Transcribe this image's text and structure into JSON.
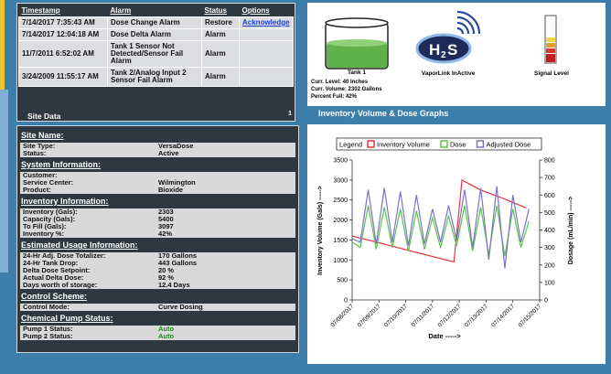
{
  "alarms": {
    "headers": [
      "Timestamp",
      "Alarm",
      "Status",
      "Options"
    ],
    "rows": [
      {
        "timestamp": "7/14/2017 7:35:43 AM",
        "alarm": "Dose Change Alarm",
        "status": "Restore",
        "option": "Acknowledge"
      },
      {
        "timestamp": "7/14/2017 12:04:18 AM",
        "alarm": "Dose Delta Alarm",
        "status": "Alarm"
      },
      {
        "timestamp": "11/7/2011 6:52:02 AM",
        "alarm": "Tank 1 Sensor Not Detected/Sensor Fail Alarm",
        "status": "Alarm"
      },
      {
        "timestamp": "3/24/2009 11:55:17 AM",
        "alarm": "Tank 2/Analog Input 2 Sensor Fail Alarm",
        "status": "Alarm"
      }
    ],
    "page": "1"
  },
  "status_panel": {
    "tank_name": "Tank 1",
    "vapor_icon": [
      "H",
      "2",
      "S"
    ],
    "vapor_label": "VaporLink InActive",
    "signal_label": "Signal Level",
    "tank_lines": [
      "Curr. Level: 40 Inches",
      "Curr. Volume: 2302 Gallons",
      "Percent Full: 42%"
    ]
  },
  "site_data_title": "Site Data",
  "graphs_title": "Inventory Volume & Dose Graphs",
  "sections": [
    {
      "title": "Site Name:",
      "rows": [
        [
          "Site Type:",
          "VersaDose"
        ],
        [
          "Status:",
          "Active"
        ]
      ]
    },
    {
      "title": "System Information:",
      "rows": [
        [
          "Customer:"
        ],
        [
          "Service Center:",
          "Wilmington"
        ],
        [
          "Product:",
          "Bioxide"
        ]
      ]
    },
    {
      "title": "Inventory Information:",
      "rows": [
        [
          "Inventory (Gals):",
          "2303"
        ],
        [
          "Capacity (Gals):",
          "5400"
        ],
        [
          "To Fill (Gals):",
          "3097"
        ],
        [
          "Inventory %:",
          "42%"
        ]
      ]
    },
    {
      "title": "Estimated Usage Information:",
      "rows": [
        [
          "24-Hr Adj. Dose Totalizer:",
          "170 Gallons"
        ],
        [
          "24-Hr Tank Drop:",
          "443 Gallons"
        ],
        [
          "Delta Dose Setpoint:",
          "20 %"
        ],
        [
          "Actual Delta Dose:",
          "92 %"
        ],
        [
          "Days worth of storage:",
          "12.4 Days"
        ]
      ]
    },
    {
      "title": "Control Scheme:",
      "rows": [
        [
          "Control Mode:",
          "Curve Dosing"
        ]
      ]
    },
    {
      "title": "Chemical Pump Status:",
      "value_color": "#1a8a1a",
      "rows": [
        [
          "Pump 1 Status:",
          "Auto"
        ],
        [
          "Pump 2 Status:",
          "Auto"
        ]
      ]
    }
  ],
  "chart_data": {
    "type": "line",
    "legend_title": "Legend",
    "xlabel": "Date ----->",
    "ylabel": "Inventory Volume (Gals) ----->",
    "y2label": "Dosage (mL/min) ----->",
    "grid": false,
    "xlim": [
      0,
      7
    ],
    "xticks": [
      {
        "value": 0,
        "label": "07/08/2017"
      },
      {
        "value": 1,
        "label": "07/09/2017"
      },
      {
        "value": 2,
        "label": "07/10/2017"
      },
      {
        "value": 3,
        "label": "07/11/2017"
      },
      {
        "value": 4,
        "label": "07/12/2017"
      },
      {
        "value": 5,
        "label": "07/13/2017"
      },
      {
        "value": 6,
        "label": "07/14/2017"
      },
      {
        "value": 7,
        "label": "07/15/2017"
      }
    ],
    "ylim": [
      0,
      3500
    ],
    "yticks": [
      0,
      500,
      1000,
      1500,
      2000,
      2500,
      3000,
      3500
    ],
    "y2lim": [
      0,
      800
    ],
    "y2ticks": [
      0,
      100,
      200,
      300,
      400,
      500,
      600,
      700,
      800
    ],
    "series": [
      {
        "name": "Inventory Volume",
        "color": "#e8323c",
        "x": [
          0,
          3.8,
          4.1,
          4.8,
          5.6,
          6.5
        ],
        "values": [
          1600,
          950,
          3000,
          2750,
          2550,
          2300
        ]
      },
      {
        "name": "Dose",
        "color": "#5cc24a",
        "axis": "y2",
        "x": [
          0,
          0.3,
          0.6,
          0.9,
          1.2,
          1.5,
          1.8,
          2.1,
          2.4,
          2.7,
          3.0,
          3.3,
          3.6,
          3.9,
          4.2,
          4.5,
          4.8,
          5.1,
          5.4,
          5.7,
          6.0,
          6.3,
          6.6
        ],
        "values": [
          330,
          300,
          540,
          290,
          530,
          300,
          520,
          280,
          510,
          290,
          470,
          300,
          480,
          310,
          540,
          280,
          530,
          260,
          540,
          250,
          520,
          300,
          450
        ]
      },
      {
        "name": "Adjusted Dose",
        "color": "#7b72c8",
        "axis": "y2",
        "x": [
          0,
          0.3,
          0.6,
          0.9,
          1.2,
          1.5,
          1.8,
          2.1,
          2.4,
          2.7,
          3.0,
          3.3,
          3.6,
          3.9,
          4.2,
          4.5,
          4.8,
          5.1,
          5.4,
          5.7,
          6.0,
          6.3,
          6.6
        ],
        "values": [
          350,
          330,
          630,
          320,
          640,
          330,
          620,
          310,
          600,
          320,
          520,
          330,
          540,
          340,
          630,
          300,
          640,
          230,
          650,
          180,
          600,
          330,
          520
        ]
      }
    ]
  }
}
